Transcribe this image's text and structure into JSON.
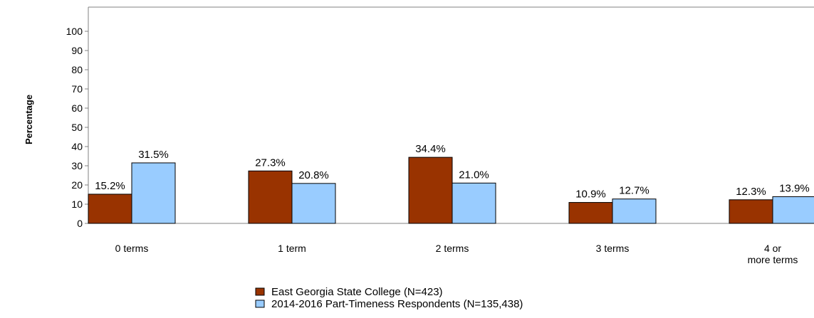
{
  "chart_data": {
    "type": "bar",
    "ylabel": "Percentage",
    "xlabel": "",
    "ylim": [
      0,
      100
    ],
    "yticks": [
      0,
      10,
      20,
      30,
      40,
      50,
      60,
      70,
      80,
      90,
      100
    ],
    "categories": [
      [
        "0 terms"
      ],
      [
        "1 term"
      ],
      [
        "2 terms"
      ],
      [
        "3 terms"
      ],
      [
        "4 or",
        "more terms"
      ]
    ],
    "series": [
      {
        "name": "East Georgia State College (N=423)",
        "color": "#993300",
        "values": [
          15.2,
          27.3,
          34.4,
          10.9,
          12.3
        ],
        "labels": [
          "15.2%",
          "27.3%",
          "34.4%",
          "10.9%",
          "12.3%"
        ]
      },
      {
        "name": "2014-2016 Part-Timeness Respondents (N=135,438)",
        "color": "#99ccff",
        "values": [
          31.5,
          20.8,
          21.0,
          12.7,
          13.9
        ],
        "labels": [
          "31.5%",
          "20.8%",
          "21.0%",
          "12.7%",
          "13.9%"
        ]
      }
    ],
    "grid": false,
    "legend_position": "bottom"
  }
}
